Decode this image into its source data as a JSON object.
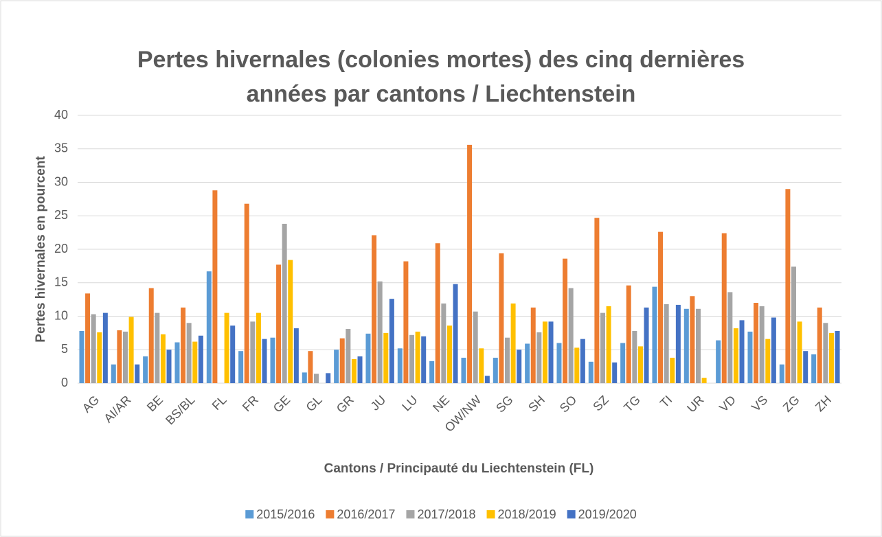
{
  "chart_data": {
    "type": "bar",
    "title": "Pertes hivernales (colonies mortes) des cinq dernières années par cantons / Liechtenstein",
    "x_label": "Cantons / Principauté du Liechtenstein (FL)",
    "y_label": "Pertes hivernales en pourcent",
    "categories": [
      "AG",
      "AI/AR",
      "BE",
      "BS/BL",
      "FL",
      "FR",
      "GE",
      "GL",
      "GR",
      "JU",
      "LU",
      "NE",
      "OW/NW",
      "SG",
      "SH",
      "SO",
      "SZ",
      "TG",
      "TI",
      "UR",
      "VD",
      "VS",
      "ZG",
      "ZH"
    ],
    "series": [
      {
        "name": "2015/2016",
        "color": "#5b9bd5",
        "values": [
          7.8,
          2.8,
          4.0,
          6.1,
          16.7,
          4.8,
          6.8,
          1.6,
          5.0,
          7.4,
          5.2,
          3.3,
          3.8,
          3.8,
          5.9,
          6.0,
          3.2,
          6.0,
          14.4,
          11.1,
          6.4,
          7.7,
          2.8,
          4.3
        ]
      },
      {
        "name": "2016/2017",
        "color": "#ed7d31",
        "values": [
          13.4,
          7.9,
          14.2,
          11.3,
          28.8,
          26.8,
          17.7,
          4.8,
          6.7,
          22.1,
          18.2,
          20.9,
          35.6,
          19.4,
          11.3,
          18.6,
          24.7,
          14.6,
          22.6,
          13.0,
          22.4,
          12.0,
          29.0,
          11.3
        ]
      },
      {
        "name": "2017/2018",
        "color": "#a5a5a5",
        "values": [
          10.3,
          7.7,
          10.5,
          9.0,
          null,
          9.2,
          23.8,
          1.4,
          8.1,
          15.2,
          7.2,
          11.9,
          10.7,
          6.8,
          7.6,
          14.2,
          10.5,
          7.8,
          11.8,
          11.1,
          13.6,
          11.5,
          17.4,
          9.0
        ]
      },
      {
        "name": "2018/2019",
        "color": "#ffc000",
        "values": [
          7.6,
          9.9,
          7.3,
          6.2,
          10.5,
          10.5,
          18.4,
          null,
          3.6,
          7.5,
          7.7,
          8.6,
          5.2,
          11.9,
          9.2,
          5.3,
          11.5,
          5.5,
          3.8,
          0.8,
          8.2,
          6.6,
          9.2,
          7.5
        ]
      },
      {
        "name": "2019/2020",
        "color": "#4472c4",
        "values": [
          10.5,
          2.8,
          5.0,
          7.1,
          8.6,
          6.6,
          8.2,
          1.5,
          4.0,
          12.6,
          7.0,
          14.8,
          1.1,
          5.0,
          9.2,
          6.6,
          3.1,
          11.3,
          11.7,
          null,
          9.4,
          9.8,
          4.8,
          7.8
        ]
      }
    ],
    "ylim": [
      0,
      40
    ],
    "yticks": [
      0,
      5,
      10,
      15,
      20,
      25,
      30,
      35,
      40
    ],
    "grid": true,
    "legend": "bottom"
  }
}
